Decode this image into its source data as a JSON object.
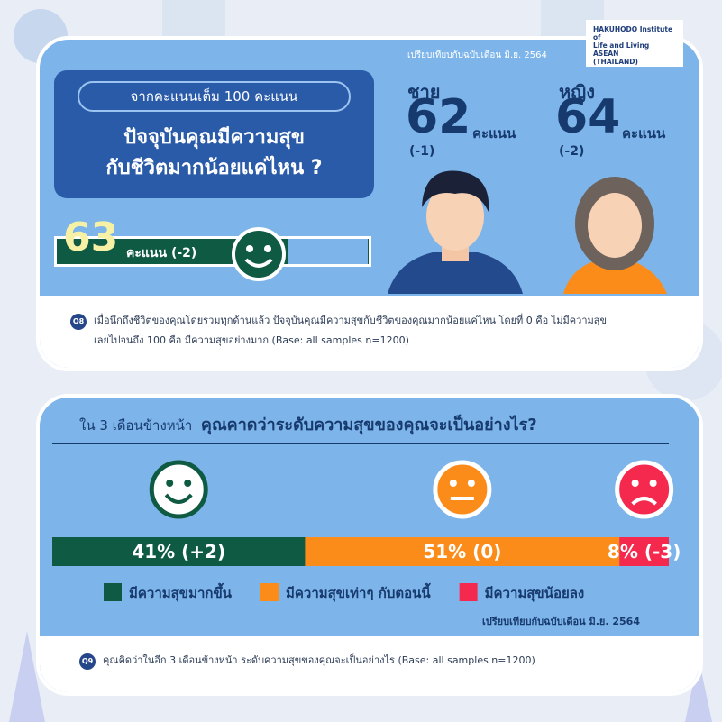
{
  "top": {
    "comparison_note": "เปรียบเทียบกับฉบับเดือน มิ.ย. 2564",
    "logo_lines": [
      "HAKUHODO Institute of",
      "Life and Living ASEAN",
      "(THAILAND)"
    ],
    "question_box": {
      "subtitle": "จากคะแนนเต็ม 100 คะแนน",
      "title_lines": [
        "ปัจจุบันคุณมีความสุข",
        "กับชีวิตมากน้อยแค่ไหน ?"
      ]
    },
    "overall": {
      "score": 63,
      "unit": "คะแนน",
      "change": "(-2)"
    },
    "male": {
      "label": "ชาย",
      "score": 62,
      "unit": "คะแนน",
      "change": "(-1)"
    },
    "female": {
      "label": "หญิง",
      "score": 64,
      "unit": "คะแนน",
      "change": "(-2)"
    },
    "question": {
      "code": "Q8",
      "lines": [
        "เมื่อนึกถึงชีวิตของคุณโดยรวมทุกด้านแล้ว ปัจจุบันคุณมีความสุขกับชีวิตของคุณมากน้อยแค่ไหน โดยที่ 0 คือ ไม่มีความสุข",
        "เลยไปจนถึง 100 คือ มีความสุขอย่างมาก (Base: all samples n=1200)"
      ]
    }
  },
  "bottom": {
    "heading_lead": "ใน 3 เดือนข้างหน้า",
    "heading": "คุณคาดว่าระดับความสุขของคุณจะเป็นอย่างไร?",
    "bar": {
      "names": [
        "มีความสุขมากขึ้น",
        "มีความสุขเท่าๆ กับตอนนี้",
        "มีความสุขน้อยลง"
      ],
      "values": [
        41,
        51,
        8
      ],
      "value_labels": [
        "41% (+2)",
        "51% (0)",
        "8% (-3)"
      ],
      "colors": [
        "#0f5a42",
        "#fb8c1a",
        "#f5284e"
      ]
    },
    "comparison_note": "เปรียบเทียบกับฉบับเดือน มิ.ย. 2564",
    "question": {
      "code": "Q9",
      "text": "คุณคิดว่าในอีก 3 เดือนข้างหน้า ระดับความสุขของคุณจะเป็นอย่างไร (Base: all samples n=1200)"
    }
  }
}
